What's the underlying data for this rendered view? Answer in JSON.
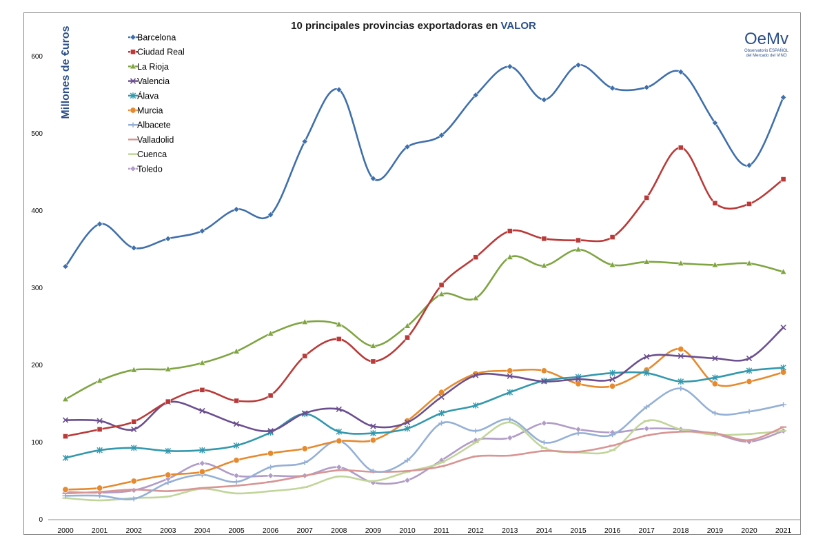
{
  "chart_data": {
    "type": "line",
    "title": "10 principales provincias exportadoras en",
    "title_accent": "VALOR",
    "ylabel": "Millones de €uros",
    "xlabel": "",
    "ylim": [
      0,
      600
    ],
    "yticks": [
      0,
      100,
      200,
      300,
      400,
      500,
      600
    ],
    "categories": [
      "2000",
      "2001",
      "2002",
      "2003",
      "2004",
      "2005",
      "2006",
      "2007",
      "2008",
      "2009",
      "2010",
      "2011",
      "2012",
      "2013",
      "2014",
      "2015",
      "2016",
      "2017",
      "2018",
      "2019",
      "2020",
      "2021"
    ],
    "legend_position": "top-left",
    "series": [
      {
        "name": "Barcelona",
        "color": "#3f6fab",
        "marker": "diamond",
        "values": [
          328,
          383,
          352,
          364,
          374,
          402,
          395,
          490,
          557,
          442,
          483,
          498,
          550,
          587,
          544,
          589,
          559,
          560,
          580,
          514,
          459,
          547
        ]
      },
      {
        "name": "Ciudad Real",
        "color": "#b93a38",
        "marker": "square",
        "values": [
          108,
          117,
          127,
          153,
          168,
          154,
          161,
          212,
          234,
          205,
          236,
          304,
          340,
          374,
          364,
          362,
          366,
          417,
          482,
          410,
          409,
          441
        ]
      },
      {
        "name": "La Rioja",
        "color": "#7fa542",
        "marker": "triangle",
        "values": [
          156,
          180,
          194,
          195,
          203,
          218,
          241,
          256,
          253,
          225,
          251,
          292,
          287,
          340,
          329,
          350,
          330,
          334,
          332,
          330,
          332,
          321
        ]
      },
      {
        "name": "Valencia",
        "color": "#6b4e8f",
        "marker": "x",
        "values": [
          129,
          128,
          117,
          152,
          141,
          124,
          115,
          138,
          143,
          121,
          126,
          159,
          187,
          186,
          179,
          182,
          182,
          211,
          212,
          209,
          209,
          249
        ]
      },
      {
        "name": "Álava",
        "color": "#3398ad",
        "marker": "star",
        "values": [
          80,
          90,
          93,
          89,
          90,
          96,
          113,
          137,
          114,
          112,
          118,
          138,
          148,
          165,
          180,
          185,
          190,
          190,
          179,
          184,
          193,
          197
        ]
      },
      {
        "name": "Murcia",
        "color": "#e58a2e",
        "marker": "circle",
        "values": [
          39,
          41,
          50,
          58,
          62,
          77,
          86,
          92,
          102,
          103,
          128,
          165,
          189,
          193,
          193,
          176,
          173,
          194,
          221,
          176,
          179,
          191
        ]
      },
      {
        "name": "Albacete",
        "color": "#95b0d6",
        "marker": "plus",
        "values": [
          31,
          31,
          27,
          48,
          58,
          49,
          68,
          74,
          102,
          63,
          77,
          125,
          115,
          130,
          100,
          112,
          110,
          146,
          170,
          138,
          140,
          149
        ]
      },
      {
        "name": "Valladolid",
        "color": "#d79594",
        "marker": "dash",
        "values": [
          34,
          36,
          39,
          37,
          41,
          44,
          49,
          57,
          64,
          62,
          63,
          69,
          82,
          83,
          89,
          88,
          96,
          109,
          114,
          112,
          103,
          120
        ]
      },
      {
        "name": "Cuenca",
        "color": "#c1d59a",
        "marker": "dash",
        "values": [
          28,
          25,
          28,
          30,
          40,
          34,
          37,
          42,
          56,
          50,
          62,
          74,
          100,
          126,
          93,
          87,
          90,
          128,
          117,
          110,
          111,
          115
        ]
      },
      {
        "name": "Toledo",
        "color": "#b19cc7",
        "marker": "diamond",
        "values": [
          36,
          35,
          38,
          53,
          73,
          57,
          57,
          57,
          68,
          48,
          51,
          77,
          103,
          106,
          125,
          117,
          113,
          118,
          117,
          111,
          101,
          115
        ]
      }
    ]
  },
  "logo": {
    "main": "OeMv",
    "line1": "Observatorio ESPAÑOL",
    "line2": "del Mercado del VINO"
  }
}
